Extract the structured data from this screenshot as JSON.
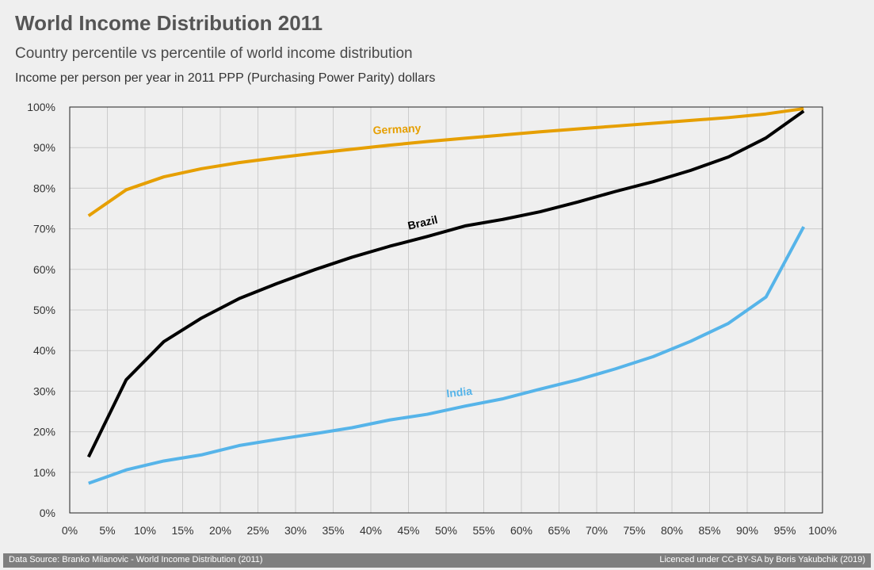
{
  "header": {
    "title": "World Income Distribution 2011",
    "subtitle": "Country percentile vs percentile of world income distribution",
    "caption": "Income per person per year in 2011 PPP (Purchasing Power Parity) dollars"
  },
  "footer": {
    "source": "Data Source: Branko Milanovic - World Income Distribution (2011)",
    "license": "Licenced under CC-BY-SA by Boris Yakubchik (2019)"
  },
  "chart_data": {
    "type": "line",
    "title": "World Income Distribution 2011",
    "xlabel": "",
    "ylabel": "",
    "xlim": [
      0,
      100
    ],
    "ylim": [
      0,
      100
    ],
    "grid": true,
    "xticks": [
      "0%",
      "5%",
      "10%",
      "15%",
      "20%",
      "25%",
      "30%",
      "35%",
      "40%",
      "45%",
      "50%",
      "55%",
      "60%",
      "65%",
      "70%",
      "75%",
      "80%",
      "85%",
      "90%",
      "95%",
      "100%"
    ],
    "yticks": [
      "0%",
      "10%",
      "20%",
      "30%",
      "40%",
      "50%",
      "60%",
      "70%",
      "80%",
      "90%",
      "100%"
    ],
    "x": [
      2.5,
      7.5,
      12.5,
      17.5,
      22.5,
      27.5,
      32.5,
      37.5,
      42.5,
      47.5,
      52.5,
      57.5,
      62.5,
      67.5,
      72.5,
      77.5,
      82.5,
      87.5,
      92.5,
      97.5
    ],
    "series": [
      {
        "name": "Germany",
        "color": "#e69f00",
        "values": [
          73.2,
          79.6,
          82.8,
          84.8,
          86.3,
          87.5,
          88.6,
          89.6,
          90.6,
          91.5,
          92.3,
          93.1,
          93.9,
          94.6,
          95.3,
          96.0,
          96.7,
          97.4,
          98.3,
          99.6
        ]
      },
      {
        "name": "Brazil",
        "color": "#000000",
        "values": [
          13.8,
          32.8,
          42.2,
          48.0,
          52.8,
          56.5,
          59.9,
          63.0,
          65.7,
          68.1,
          70.7,
          72.3,
          74.2,
          76.6,
          79.2,
          81.6,
          84.4,
          87.7,
          92.4,
          99.0
        ]
      },
      {
        "name": "India",
        "color": "#56b4e9",
        "values": [
          7.3,
          10.6,
          12.8,
          14.3,
          16.6,
          18.1,
          19.5,
          21.0,
          22.9,
          24.3,
          26.3,
          28.1,
          30.5,
          32.8,
          35.5,
          38.5,
          42.3,
          46.7,
          53.2,
          70.5
        ]
      }
    ],
    "annotations": [
      {
        "text": "Germany",
        "x": 43.5,
        "y": 93.6,
        "angle": -3,
        "color": "#e69f00"
      },
      {
        "text": "Brazil",
        "x": 47.0,
        "y": 70.6,
        "angle": -13,
        "color": "#000000"
      },
      {
        "text": "India",
        "x": 51.8,
        "y": 28.8,
        "angle": -6,
        "color": "#56b4e9"
      }
    ]
  }
}
